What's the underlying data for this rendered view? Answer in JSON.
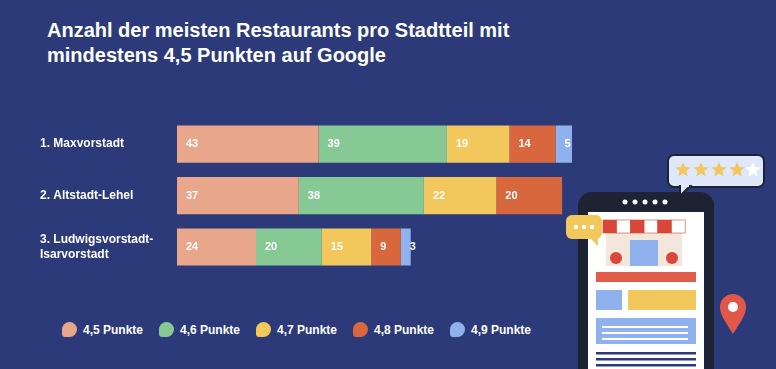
{
  "chart_data": {
    "type": "bar",
    "orientation": "horizontal",
    "stacked": true,
    "data_labels": true,
    "tick_labels": "y",
    "grid": false,
    "legend": "bottom",
    "title": "Anzahl der meisten Restaurants pro Stadtteil mit mindestens 4,5 Punkten auf Google",
    "categories": [
      "1. Maxvorstadt",
      "2. Altstadt-Lehel",
      "3. Ludwigsvorstadt-Isarvorstadt"
    ],
    "xlim": [
      0,
      120
    ],
    "series": [
      {
        "name": "4,5 Punkte",
        "color": "#e8a68b",
        "values": [
          43,
          37,
          24
        ]
      },
      {
        "name": "4,6 Punkte",
        "color": "#86c995",
        "values": [
          39,
          38,
          20
        ]
      },
      {
        "name": "4,7 Punkte",
        "color": "#f2c75c",
        "values": [
          19,
          22,
          15
        ]
      },
      {
        "name": "4,8 Punkte",
        "color": "#d9673e",
        "values": [
          14,
          20,
          9
        ]
      },
      {
        "name": "4,9 Punkte",
        "color": "#8fb1ee",
        "values": [
          5,
          null,
          3
        ]
      }
    ]
  }
}
